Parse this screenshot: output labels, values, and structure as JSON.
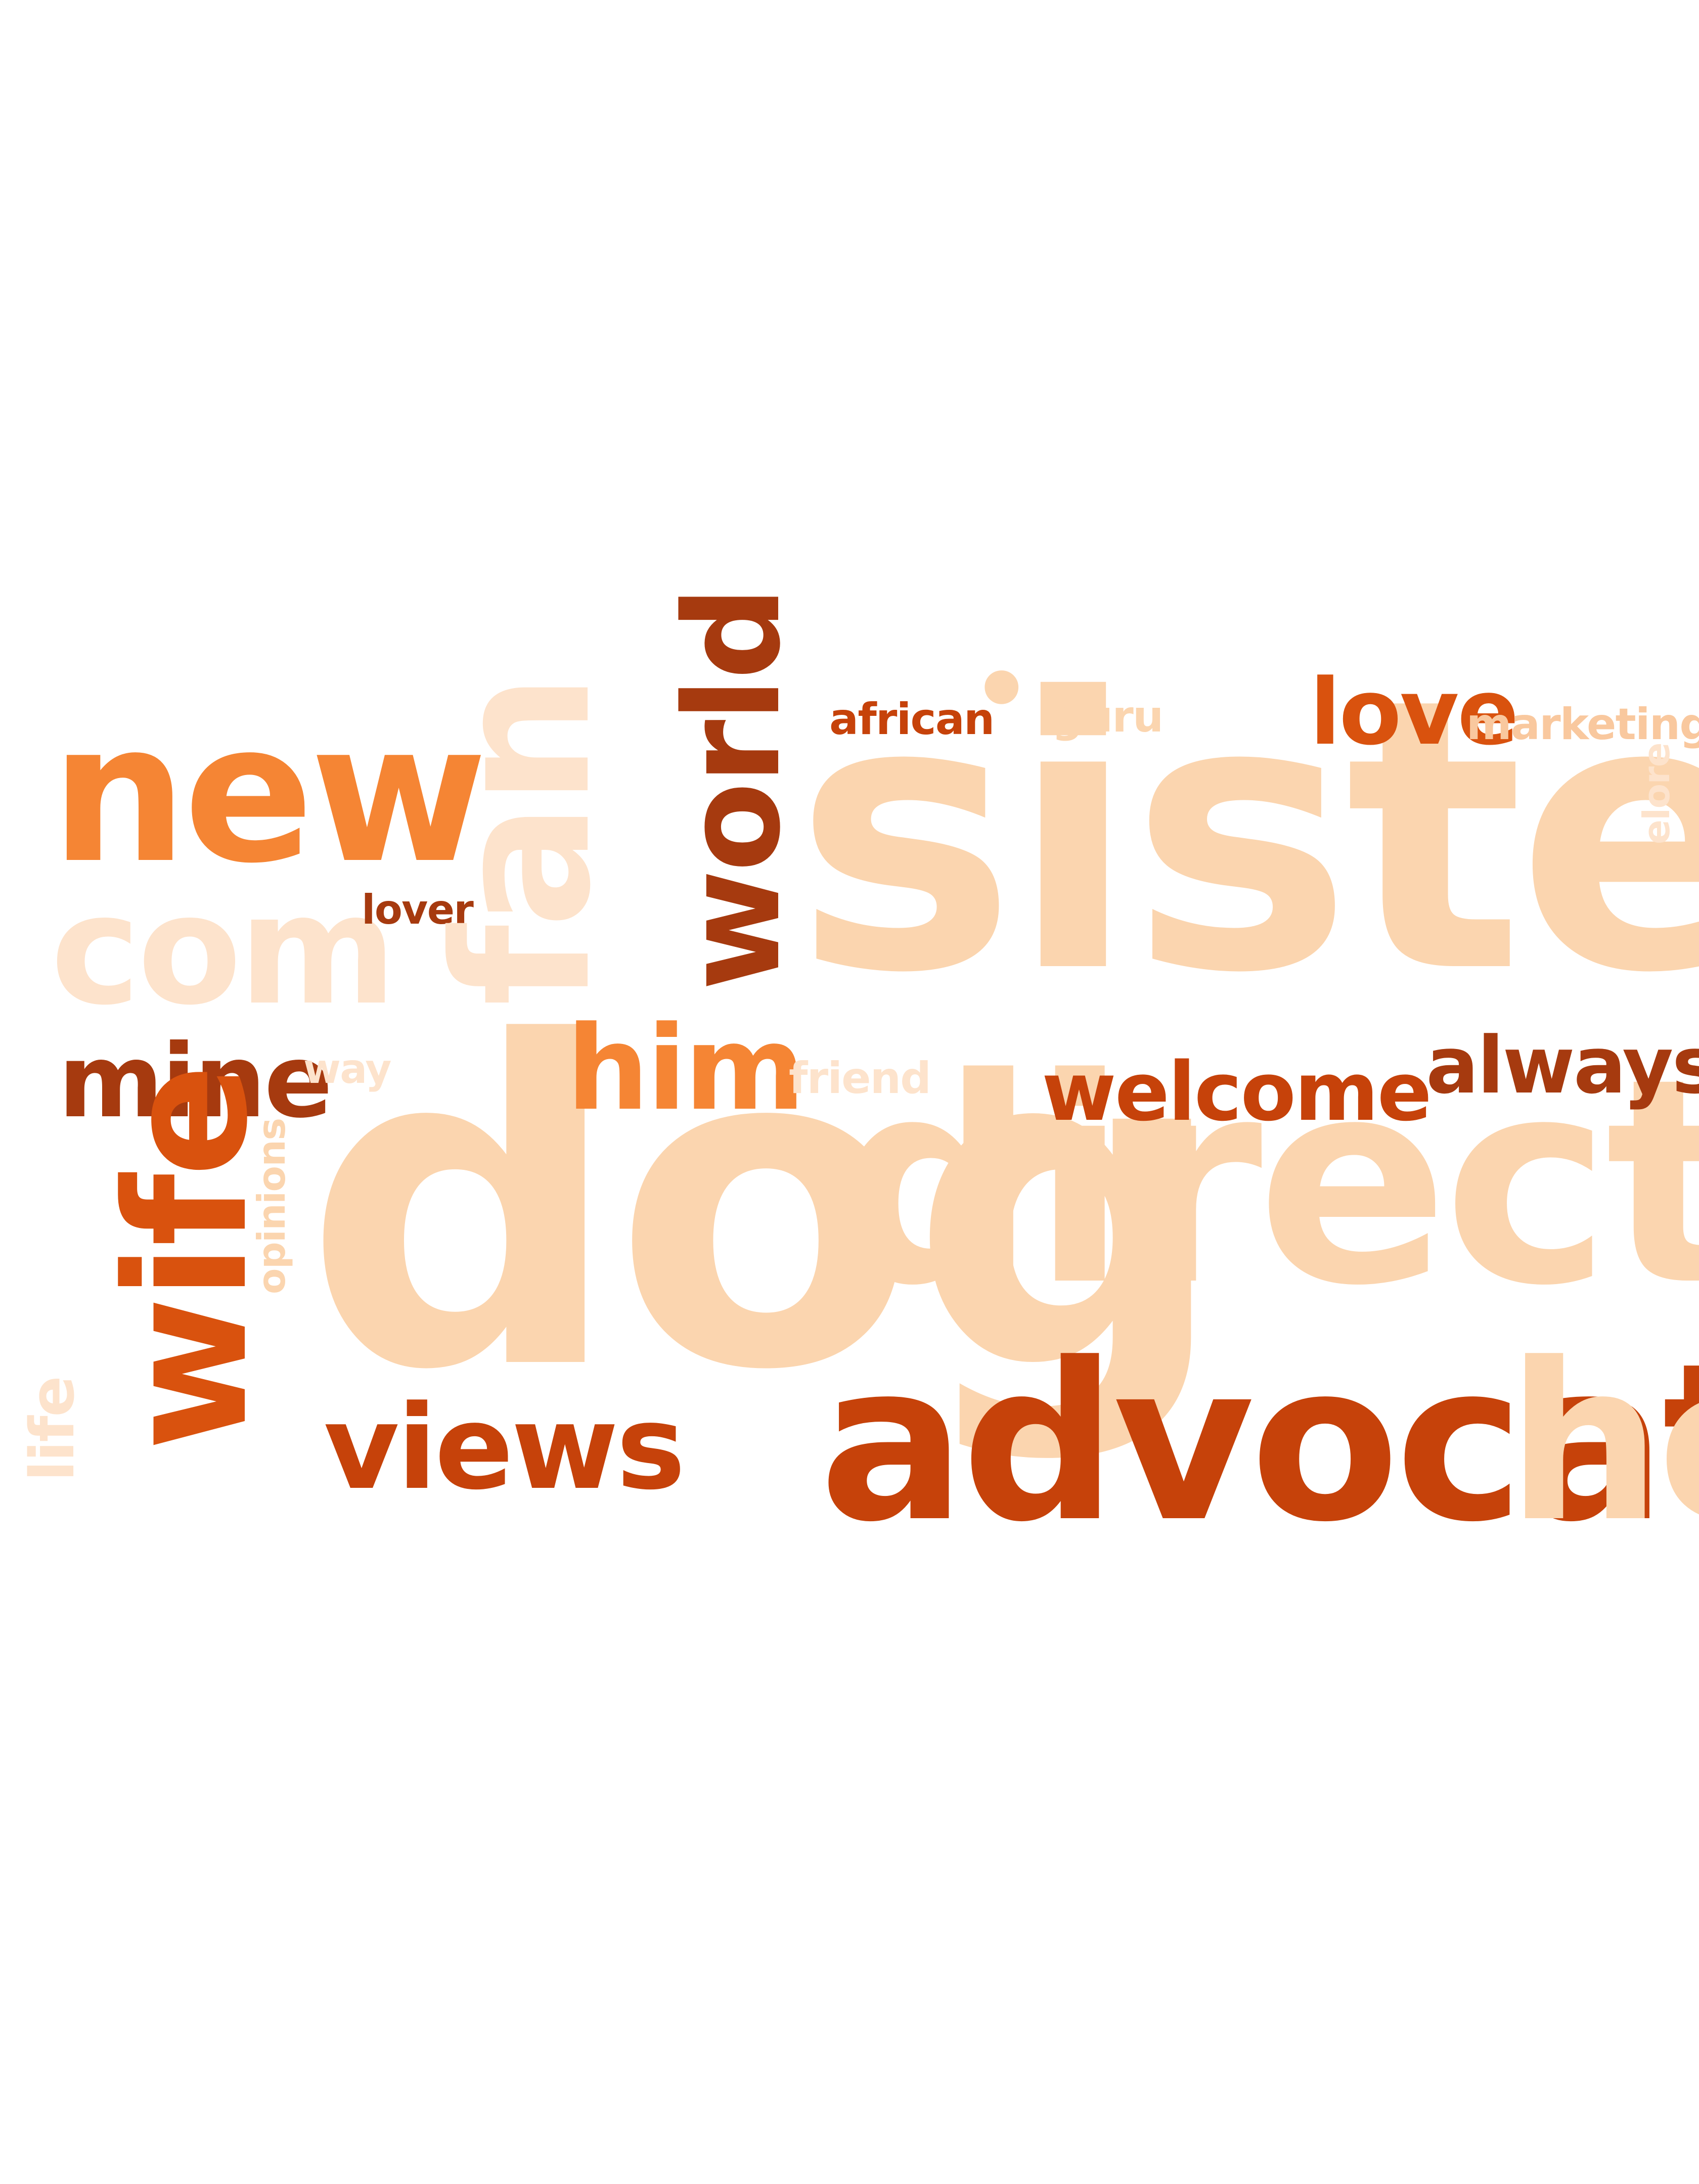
{
  "palette": {
    "darkest": "#a63a0f",
    "dark": "#c6420a",
    "mid_dark": "#d9520e",
    "orange": "#f58534",
    "light": "#f9c89e",
    "pale": "#fbd5af",
    "palest": "#fde3cc"
  },
  "words": {
    "sister": {
      "text": "sister",
      "color": "#fbd5af"
    },
    "dog": {
      "text": "dog",
      "color": "#fbd5af"
    },
    "director": {
      "text": "director",
      "color": "#fbd5af"
    },
    "advocate": {
      "text": "advocate",
      "color": "#c6420a"
    },
    "he": {
      "text": "he",
      "color": "#fbd5af"
    },
    "new": {
      "text": "new",
      "color": "#f58534"
    },
    "com": {
      "text": "com",
      "color": "#fde3cc"
    },
    "fan": {
      "text": "fan",
      "color": "#fde3cc"
    },
    "world": {
      "text": "world",
      "color": "#a63a0f"
    },
    "wife": {
      "text": "wife",
      "color": "#d9520e"
    },
    "views": {
      "text": "views",
      "color": "#c6420a"
    },
    "him": {
      "text": "him",
      "color": "#f58534"
    },
    "mine": {
      "text": "mine",
      "color": "#a63a0f"
    },
    "welcome": {
      "text": "welcome",
      "color": "#c6420a"
    },
    "always": {
      "text": "always",
      "color": "#a63a0f"
    },
    "love": {
      "text": "love",
      "color": "#d9520e"
    },
    "marketing": {
      "text": "marketing",
      "color": "#f9c89e"
    },
    "african": {
      "text": "african",
      "color": "#c6420a"
    },
    "guru": {
      "text": "guru",
      "color": "#fbd5af"
    },
    "lover": {
      "text": "lover",
      "color": "#a63a0f"
    },
    "way": {
      "text": "way",
      "color": "#fde3cc"
    },
    "friend": {
      "text": "friend",
      "color": "#fde3cc"
    },
    "life": {
      "text": "life",
      "color": "#fde3cc"
    },
    "opinions": {
      "text": "opinions",
      "color": "#fbd5af"
    },
    "elore": {
      "text": "elore",
      "color": "#fde3cc"
    },
    "dot": {
      "text": "•",
      "color": "#fbd5af"
    }
  }
}
